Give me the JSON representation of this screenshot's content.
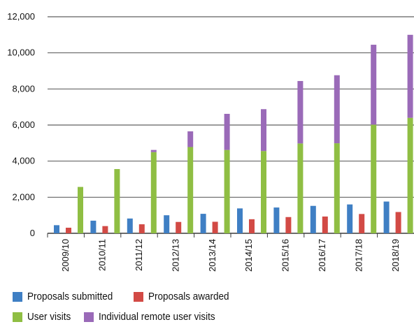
{
  "chart_data": {
    "type": "bar",
    "categories": [
      "2009/10",
      "2010/11",
      "2011/12",
      "2012/13",
      "2013/14",
      "2014/15",
      "2015/16",
      "2016/17",
      "2017/18",
      "2018/19"
    ],
    "ylim": [
      0,
      12000
    ],
    "yticks": [
      0,
      2000,
      4000,
      6000,
      8000,
      10000,
      12000
    ],
    "ytick_labels": [
      "0",
      "2,000",
      "4,000",
      "6,000",
      "8,000",
      "10,000",
      "12,000"
    ],
    "grid": true,
    "legend_position": "bottom-left",
    "series": [
      {
        "name": "Proposals submitted",
        "color": "#3f7fc4",
        "stack": "a",
        "values": [
          450,
          700,
          820,
          1000,
          1080,
          1380,
          1430,
          1520,
          1600,
          1760
        ]
      },
      {
        "name": "Proposals awarded",
        "color": "#d24a45",
        "stack": "b",
        "values": [
          310,
          400,
          500,
          630,
          640,
          780,
          900,
          930,
          1070,
          1180
        ]
      },
      {
        "name": "User visits",
        "color": "#8fbe43",
        "stack": "c",
        "values": [
          2570,
          3560,
          4500,
          4780,
          4620,
          4560,
          4980,
          4990,
          6020,
          6400
        ]
      },
      {
        "name": "Individual remote user visits",
        "color": "#9a6ab8",
        "stack": "c",
        "values": [
          0,
          0,
          120,
          870,
          2000,
          2320,
          3460,
          3770,
          4430,
          4600
        ]
      }
    ]
  }
}
